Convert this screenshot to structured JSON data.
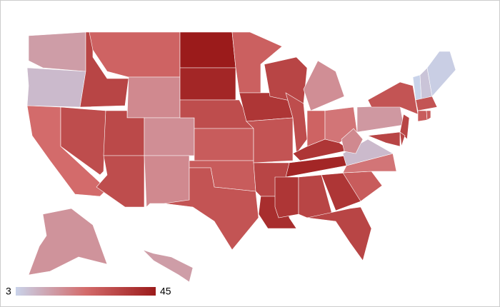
{
  "chart_data": {
    "type": "choropleth",
    "values": [
      14,
      8,
      24,
      32,
      34,
      26,
      18,
      33,
      32,
      17,
      18,
      45,
      42,
      32,
      28,
      28,
      30,
      27,
      38,
      30,
      34,
      40,
      34,
      32,
      17,
      26,
      22,
      38,
      42,
      38,
      34,
      38,
      34,
      28,
      22,
      8,
      18,
      15,
      30,
      34,
      34,
      34,
      3,
      6,
      4,
      30,
      28,
      28,
      16,
      14
    ],
    "range": [
      3,
      45
    ],
    "colors": [
      "#c9d3ea",
      "#d36b6b",
      "#9b1b1b"
    ]
  }
}
